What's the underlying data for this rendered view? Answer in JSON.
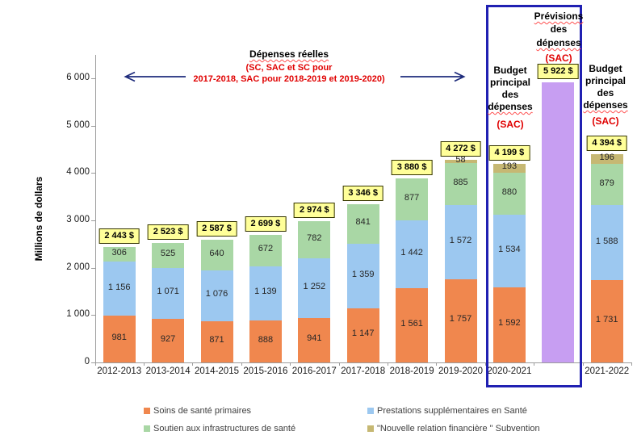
{
  "annotation": {
    "title": "Dépenses réelles",
    "note_line1": "(SC, SAC et SC pour",
    "note_line2": "2017-2018, SAC pour 2018-2019 et 2019-2020)"
  },
  "y_axis_label": "Millions de dollars",
  "header_blocks": {
    "budget_2020": {
      "line1": "Budget",
      "line2": "principal",
      "line3": "des",
      "line4": "dépenses",
      "sac": "(SAC)"
    },
    "previsions": {
      "line1": "Prévisions",
      "line2": "des",
      "line3": "dépenses",
      "sac": "(SAC)"
    },
    "budget_2021": {
      "line1": "Budget",
      "line2": "principal",
      "line3": "des",
      "line4": "dépenses",
      "sac": "(SAC)"
    }
  },
  "chart_data": {
    "type": "bar",
    "stacked": true,
    "title": "",
    "xlabel": "",
    "ylabel": "Millions de dollars",
    "grid": false,
    "legend_position": "bottom",
    "ylim": [
      0,
      6460
    ],
    "yticks": [
      "0",
      "1 000",
      "2 000",
      "3 000",
      "4 000",
      "5 000",
      "6 000"
    ],
    "categories": [
      "2012-2013",
      "2013-2014",
      "2014-2015",
      "2015-2016",
      "2016-2017",
      "2017-2018",
      "2018-2019",
      "2019-2020",
      "2020-2021",
      "",
      "2021-2022"
    ],
    "series": [
      {
        "name": "Soins de santé primaires",
        "color": "#F0874E",
        "values": [
          981,
          927,
          871,
          888,
          941,
          1147,
          1561,
          1757,
          1592,
          0,
          1731
        ]
      },
      {
        "name": "Prestations supplémentaires en Santé",
        "color": "#9CC8F0",
        "values": [
          1156,
          1071,
          1076,
          1139,
          1252,
          1359,
          1442,
          1572,
          1534,
          0,
          1588
        ]
      },
      {
        "name": "Soutien aux infrastructures de santé",
        "color": "#A9D7A5",
        "values": [
          306,
          525,
          640,
          672,
          782,
          841,
          877,
          885,
          880,
          0,
          879
        ]
      },
      {
        "name": "\"Nouvelle relation financière \" Subvention",
        "color": "#C6B873",
        "values": [
          0,
          0,
          0,
          0,
          0,
          0,
          0,
          58,
          193,
          0,
          196
        ]
      }
    ],
    "forecast_bar": {
      "slot": 9,
      "value": 5922,
      "color": "#C79EF2",
      "label": "Prévisions des dépenses (SAC)"
    },
    "totals": [
      "2 443 $",
      "2 523 $",
      "2 587 $",
      "2 699 $",
      "2 974 $",
      "3 346 $",
      "3 880 $",
      "4 272 $",
      "4 199 $",
      "5 922 $",
      "4 394 $"
    ]
  },
  "colors": {
    "highlight_box_border": "#2020B2",
    "total_badge_bg": "#FFFF99",
    "annotation_red": "#E00000",
    "arrow": "#1F2C7C"
  }
}
